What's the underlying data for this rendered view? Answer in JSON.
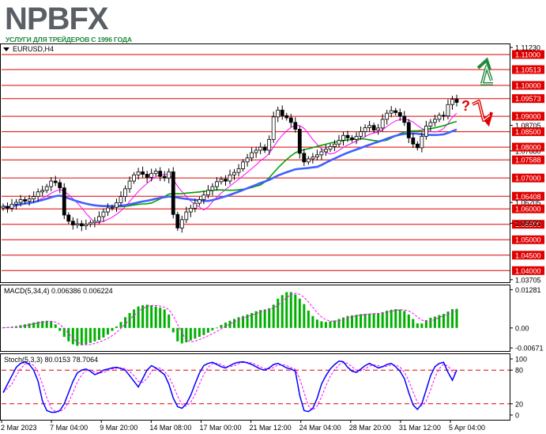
{
  "logo": {
    "brand_text": "NPBFX",
    "tagline": "УСЛУГИ ДЛЯ ТРЕЙДЕРОВ С 1996 ГОДА"
  },
  "colors": {
    "level_line": "#e00000",
    "label_bg": "#e00000",
    "candle": "#000000",
    "ma_fast": "#ff00ff",
    "ma_mid": "#00a000",
    "ma_slow": "#4060ff",
    "macd_bar": "#00b000",
    "macd_signal": "#ff00ff",
    "stoch_main": "#0000ff",
    "stoch_signal": "#ff00ff",
    "stoch_levels": "#e00000",
    "arrow_up": "#1f8a3c",
    "arrow_down": "#e00000"
  },
  "chart_data": [
    {
      "type": "candlestick",
      "symbol_label": "EURUSD,H4",
      "price_axis_ticks": [
        "1.11230",
        "1.11000",
        "1.10513",
        "1.10000",
        "1.09573",
        "1.09000",
        "1.08705",
        "1.08500",
        "1.07880",
        "1.08000",
        "1.07588",
        "1.07000",
        "1.06408",
        "1.06205",
        "1.06000",
        "1.05500",
        "1.05533",
        "1.05000",
        "1.04500",
        "1.04000",
        "1.03705"
      ],
      "highlighted_levels": [
        "1.11000",
        "1.10513",
        "1.10000",
        "1.09573",
        "1.09000",
        "1.08500",
        "1.08000",
        "1.07588",
        "1.07000",
        "1.06408",
        "1.06000",
        "1.05500",
        "1.05000",
        "1.04500",
        "1.04000"
      ],
      "ylim": [
        1.037,
        1.1123
      ],
      "time_axis_labels": [
        "2 Mar 2023",
        "7 Mar 04:00",
        "9 Mar 20:00",
        "14 Mar 08:00",
        "17 Mar 00:00",
        "21 Mar 12:00",
        "24 Mar 04:00",
        "28 Mar 20:00",
        "31 Mar 12:00",
        "5 Apr 04:00"
      ],
      "close": [
        1.0608,
        1.0602,
        1.0615,
        1.0621,
        1.063,
        1.0625,
        1.0632,
        1.064,
        1.0655,
        1.066,
        1.0672,
        1.069,
        1.0685,
        1.0668,
        1.058,
        1.056,
        1.0548,
        1.0552,
        1.0545,
        1.055,
        1.0555,
        1.056,
        1.0575,
        1.059,
        1.0603,
        1.0605,
        1.062,
        1.064,
        1.0665,
        1.069,
        1.071,
        1.072,
        1.0712,
        1.0702,
        1.0715,
        1.0722,
        1.0705,
        1.07,
        1.072,
        1.0582,
        1.0538,
        1.0565,
        1.059,
        1.0602,
        1.0618,
        1.063,
        1.0645,
        1.066,
        1.0672,
        1.0688,
        1.0696,
        1.069,
        1.071,
        1.0718,
        1.073,
        1.0752,
        1.0765,
        1.0782,
        1.079,
        1.08,
        1.079,
        1.0825,
        1.0898,
        1.092,
        1.0902,
        1.0895,
        1.088,
        1.0858,
        1.078,
        1.0752,
        1.0762,
        1.0768,
        1.0775,
        1.0785,
        1.0793,
        1.0802,
        1.081,
        1.0822,
        1.0838,
        1.083,
        1.0825,
        1.0835,
        1.085,
        1.0863,
        1.087,
        1.0855,
        1.0862,
        1.089,
        1.091,
        1.0918,
        1.0912,
        1.09,
        1.088,
        1.083,
        1.081,
        1.0798,
        1.0835,
        1.0868,
        1.088,
        1.089,
        1.0903,
        1.0901,
        1.0938,
        1.0955,
        1.0945
      ],
      "ma_fast_last": 1.0865,
      "ma_mid_last": 1.0838,
      "ma_slow_last": 1.0805
    },
    {
      "type": "bar",
      "title": "MACD(5,34,4) 0.006386 0.006224",
      "axis_ticks": [
        "0.01281",
        "0.00",
        "-0.00671"
      ],
      "ylim": [
        -0.0072,
        0.0132
      ],
      "values": [
        0.0001,
        0.0002,
        0.0004,
        0.0006,
        0.0009,
        0.0012,
        0.0015,
        0.0018,
        0.0021,
        0.0023,
        0.0024,
        0.0021,
        0.0012,
        -0.001,
        -0.003,
        -0.0045,
        -0.0055,
        -0.006,
        -0.0058,
        -0.0055,
        -0.005,
        -0.0045,
        -0.004,
        -0.0032,
        -0.0022,
        -0.001,
        0.0005,
        0.002,
        0.0036,
        0.005,
        0.0062,
        0.0072,
        0.0076,
        0.0078,
        0.0075,
        0.0072,
        0.0068,
        0.0062,
        0.0045,
        -0.0015,
        -0.0045,
        -0.0052,
        -0.0048,
        -0.0042,
        -0.0036,
        -0.003,
        -0.0024,
        -0.0016,
        -0.0008,
        0.0001,
        0.001,
        0.0018,
        0.0024,
        0.003,
        0.0036,
        0.004,
        0.0045,
        0.005,
        0.0056,
        0.006,
        0.0062,
        0.0066,
        0.0078,
        0.0098,
        0.011,
        0.012,
        0.012,
        0.0112,
        0.0098,
        0.008,
        0.0058,
        0.004,
        0.0028,
        0.0022,
        0.002,
        0.0022,
        0.0025,
        0.003,
        0.0035,
        0.004,
        0.0042,
        0.0044,
        0.0046,
        0.0047,
        0.0048,
        0.0049,
        0.005,
        0.0053,
        0.0058,
        0.0061,
        0.0063,
        0.0062,
        0.0057,
        0.0045,
        0.003,
        0.0015,
        0.0015,
        0.0026,
        0.0034,
        0.0038,
        0.0043,
        0.0047,
        0.0055,
        0.0063,
        0.0064
      ],
      "signal_last": 0.006224
    },
    {
      "type": "line",
      "title": "Stoch(5,3,3) 80.0153 78.7064",
      "axis_ticks": [
        "100",
        "80",
        "20",
        "0"
      ],
      "ylim": [
        0,
        100
      ],
      "levels": [
        80,
        20
      ],
      "main": [
        40,
        55,
        70,
        85,
        92,
        95,
        90,
        80,
        60,
        25,
        8,
        5,
        5,
        8,
        20,
        40,
        60,
        75,
        80,
        82,
        78,
        72,
        75,
        80,
        82,
        84,
        85,
        83,
        80,
        70,
        60,
        50,
        65,
        80,
        88,
        84,
        78,
        72,
        55,
        30,
        15,
        12,
        20,
        35,
        55,
        75,
        88,
        92,
        94,
        90,
        86,
        84,
        88,
        92,
        94,
        95,
        93,
        90,
        86,
        82,
        80,
        84,
        90,
        92,
        88,
        84,
        82,
        78,
        35,
        8,
        6,
        12,
        30,
        55,
        70,
        82,
        90,
        96,
        95,
        85,
        78,
        76,
        82,
        88,
        92,
        88,
        84,
        86,
        90,
        92,
        86,
        78,
        65,
        40,
        18,
        10,
        20,
        45,
        70,
        86,
        92,
        94,
        76,
        62,
        80
      ],
      "signal_last": 78.7064
    }
  ]
}
